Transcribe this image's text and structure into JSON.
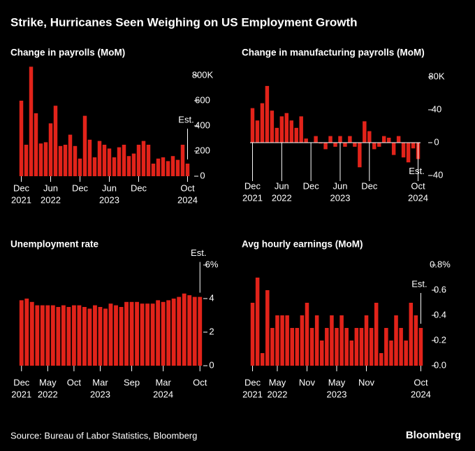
{
  "title": "Strike, Hurricanes Seen Weighing on US Employment Growth",
  "source": "Source: Bureau of Labor Statistics, Bloomberg",
  "brand": "Bloomberg",
  "chart_data": [
    {
      "type": "bar",
      "title": "Change in payrolls (MoM)",
      "color": "#e2231a",
      "annotation": "Est.",
      "categories": [
        "Dec",
        null,
        null,
        null,
        null,
        null,
        "Jun",
        null,
        null,
        null,
        null,
        null,
        "Dec",
        null,
        null,
        null,
        null,
        null,
        "Jun",
        null,
        null,
        null,
        null,
        null,
        "Dec",
        null,
        null,
        null,
        null,
        null,
        null,
        null,
        null,
        null,
        "Oct"
      ],
      "years": [
        "2021",
        null,
        null,
        null,
        null,
        null,
        "2022",
        null,
        null,
        null,
        null,
        null,
        null,
        null,
        null,
        null,
        null,
        null,
        "2023",
        null,
        null,
        null,
        null,
        null,
        null,
        null,
        null,
        null,
        null,
        null,
        null,
        null,
        null,
        null,
        "2024"
      ],
      "values": [
        600,
        250,
        870,
        500,
        260,
        270,
        420,
        560,
        240,
        250,
        330,
        240,
        140,
        480,
        290,
        150,
        280,
        250,
        220,
        150,
        230,
        250,
        160,
        180,
        250,
        280,
        250,
        100,
        140,
        150,
        120,
        160,
        130,
        250,
        100
      ],
      "ylim": [
        0,
        900
      ],
      "yticks": [
        0,
        200,
        400,
        600,
        {
          "value": 800,
          "label": "800K"
        }
      ]
    },
    {
      "type": "bar",
      "title": "Change in manufacturing payrolls (MoM)",
      "color": "#e2231a",
      "annotation": "Est.",
      "categories": [
        "Dec",
        null,
        null,
        null,
        null,
        null,
        "Jun",
        null,
        null,
        null,
        null,
        null,
        "Dec",
        null,
        null,
        null,
        null,
        null,
        "Jun",
        null,
        null,
        null,
        null,
        null,
        "Dec",
        null,
        null,
        null,
        null,
        null,
        null,
        null,
        null,
        null,
        "Oct"
      ],
      "years": [
        "2021",
        null,
        null,
        null,
        null,
        null,
        "2022",
        null,
        null,
        null,
        null,
        null,
        null,
        null,
        null,
        null,
        null,
        null,
        "2023",
        null,
        null,
        null,
        null,
        null,
        null,
        null,
        null,
        null,
        null,
        null,
        null,
        null,
        null,
        null,
        "2024"
      ],
      "values": [
        42,
        27,
        48,
        69,
        39,
        18,
        32,
        36,
        27,
        18,
        32,
        5,
        0,
        8,
        -1,
        -8,
        8,
        -5,
        8,
        -5,
        8,
        -5,
        -30,
        26,
        14,
        -8,
        -5,
        8,
        6,
        -15,
        8,
        -18,
        -24,
        -7,
        -20
      ],
      "ylim": [
        -40,
        80
      ],
      "yticks": [
        -40,
        0,
        40,
        {
          "value": 80,
          "label": "80K"
        }
      ]
    },
    {
      "type": "bar",
      "title": "Unemployment rate",
      "color": "#e2231a",
      "annotation": "Est.",
      "categories": [
        "Dec",
        null,
        null,
        null,
        null,
        "May",
        null,
        null,
        null,
        null,
        "Oct",
        null,
        null,
        null,
        null,
        "Mar",
        null,
        null,
        null,
        null,
        null,
        "Sep",
        null,
        null,
        null,
        null,
        null,
        "Mar",
        null,
        null,
        null,
        null,
        null,
        null,
        "Oct"
      ],
      "years": [
        "2021",
        null,
        null,
        null,
        null,
        "2022",
        null,
        null,
        null,
        null,
        null,
        null,
        null,
        null,
        null,
        "2023",
        null,
        null,
        null,
        null,
        null,
        null,
        null,
        null,
        null,
        null,
        null,
        "2024",
        null,
        null,
        null,
        null,
        null,
        null,
        null
      ],
      "values": [
        3.9,
        4.0,
        3.8,
        3.6,
        3.6,
        3.6,
        3.6,
        3.5,
        3.6,
        3.5,
        3.6,
        3.6,
        3.5,
        3.4,
        3.6,
        3.5,
        3.4,
        3.7,
        3.6,
        3.5,
        3.8,
        3.8,
        3.8,
        3.7,
        3.7,
        3.7,
        3.9,
        3.8,
        3.9,
        4.0,
        4.1,
        4.3,
        4.2,
        4.1,
        4.1
      ],
      "ylim": [
        0,
        6
      ],
      "yticks": [
        0,
        2,
        4,
        {
          "value": 6,
          "label": "6%"
        }
      ]
    },
    {
      "type": "bar",
      "title": "Avg hourly earnings (MoM)",
      "color": "#e2231a",
      "annotation": "Est.",
      "categories": [
        "Dec",
        null,
        null,
        null,
        null,
        "May",
        null,
        null,
        null,
        null,
        null,
        "Nov",
        null,
        null,
        null,
        null,
        null,
        "May",
        null,
        null,
        null,
        null,
        null,
        "Nov",
        null,
        null,
        null,
        null,
        null,
        null,
        null,
        null,
        null,
        null,
        "Oct"
      ],
      "years": [
        "2021",
        null,
        null,
        null,
        null,
        "2022",
        null,
        null,
        null,
        null,
        null,
        null,
        null,
        null,
        null,
        null,
        null,
        "2023",
        null,
        null,
        null,
        null,
        null,
        null,
        null,
        null,
        null,
        null,
        null,
        null,
        null,
        null,
        null,
        null,
        "2024"
      ],
      "values": [
        0.5,
        0.7,
        0.1,
        0.6,
        0.3,
        0.4,
        0.4,
        0.4,
        0.3,
        0.3,
        0.4,
        0.5,
        0.3,
        0.4,
        0.2,
        0.3,
        0.4,
        0.3,
        0.4,
        0.3,
        0.2,
        0.3,
        0.3,
        0.4,
        0.3,
        0.5,
        0.1,
        0.3,
        0.2,
        0.4,
        0.3,
        0.2,
        0.5,
        0.4,
        0.3
      ],
      "ylim": [
        0,
        0.8
      ],
      "yticks": [
        {
          "value": 0,
          "label": "0.0"
        },
        0.2,
        0.4,
        0.6,
        {
          "value": 0.8,
          "label": "0.8%"
        }
      ]
    }
  ]
}
